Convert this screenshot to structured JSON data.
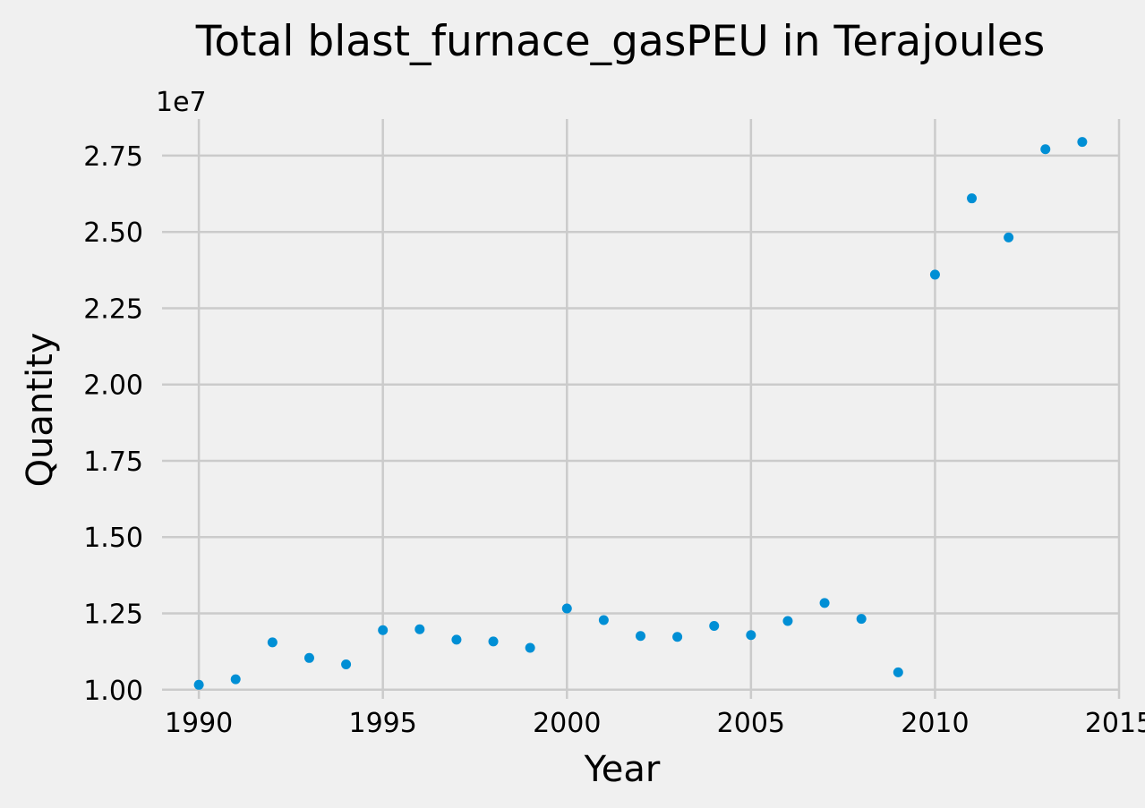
{
  "chart_data": {
    "type": "scatter",
    "title": "Total blast_furnace_gasPEU in Terajoules",
    "xlabel": "Year",
    "ylabel": "Quantity",
    "y_offset_label": "1e7",
    "xlim": [
      1989,
      2015
    ],
    "ylim": [
      0.97,
      2.87
    ],
    "x_ticks": [
      1990,
      1995,
      2000,
      2005,
      2010,
      2015
    ],
    "x_tick_labels": [
      "1990",
      "1995",
      "2000",
      "2005",
      "2010",
      "2015"
    ],
    "y_ticks": [
      1.0,
      1.25,
      1.5,
      1.75,
      2.0,
      2.25,
      2.5,
      2.75
    ],
    "y_tick_labels": [
      "1.00",
      "1.25",
      "1.50",
      "1.75",
      "2.00",
      "2.25",
      "2.50",
      "2.75"
    ],
    "grid": true,
    "marker_color": "#008fd5",
    "background_color": "#f0f0f0",
    "grid_color": "#cbcbcb",
    "series": [
      {
        "x": [
          1990,
          1991,
          1992,
          1993,
          1994,
          1995,
          1996,
          1997,
          1998,
          1999,
          2000,
          2001,
          2002,
          2003,
          2004,
          2005,
          2006,
          2007,
          2008,
          2009,
          2010,
          2011,
          2012,
          2013,
          2014
        ],
        "y": [
          1.016,
          1.034,
          1.155,
          1.104,
          1.083,
          1.195,
          1.198,
          1.164,
          1.158,
          1.137,
          1.266,
          1.228,
          1.176,
          1.173,
          1.209,
          1.179,
          1.225,
          1.284,
          1.232,
          1.057,
          2.36,
          2.61,
          2.482,
          2.771,
          2.795
        ]
      }
    ]
  }
}
